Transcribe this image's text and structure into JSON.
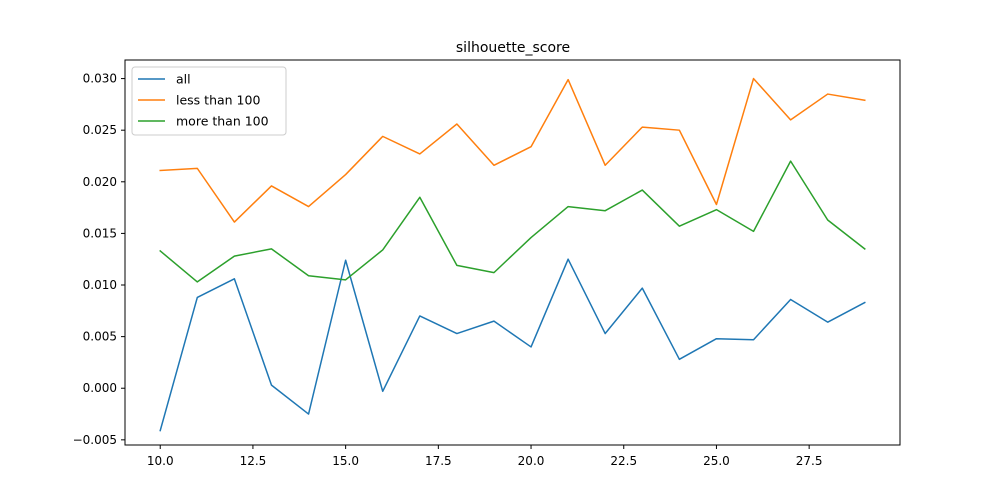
{
  "chart_data": {
    "type": "line",
    "title": "silhouette_score",
    "xlabel": "",
    "ylabel": "",
    "x": [
      10,
      11,
      12,
      13,
      14,
      15,
      16,
      17,
      18,
      19,
      20,
      21,
      22,
      23,
      24,
      25,
      26,
      27,
      28,
      29
    ],
    "xlim": [
      9.05,
      29.95
    ],
    "ylim": [
      -0.0055,
      0.0318
    ],
    "xticks": [
      10.0,
      12.5,
      15.0,
      17.5,
      20.0,
      22.5,
      25.0,
      27.5
    ],
    "xtick_labels": [
      "10.0",
      "12.5",
      "15.0",
      "17.5",
      "20.0",
      "22.5",
      "25.0",
      "27.5"
    ],
    "yticks": [
      -0.005,
      0.0,
      0.005,
      0.01,
      0.015,
      0.02,
      0.025,
      0.03
    ],
    "ytick_labels": [
      "−0.005",
      "0.000",
      "0.005",
      "0.010",
      "0.015",
      "0.020",
      "0.025",
      "0.030"
    ],
    "grid": false,
    "legend_position": "top-left",
    "series": [
      {
        "name": "all",
        "color": "#1f77b4",
        "values": [
          -0.0041,
          0.0088,
          0.0106,
          0.0003,
          -0.0025,
          0.0124,
          -0.0003,
          0.007,
          0.0053,
          0.0065,
          0.004,
          0.0125,
          0.0053,
          0.0097,
          0.0028,
          0.0048,
          0.0047,
          0.0086,
          0.0064,
          0.0083
        ]
      },
      {
        "name": "less than 100",
        "color": "#ff7f0e",
        "values": [
          0.0211,
          0.0213,
          0.0161,
          0.0196,
          0.0176,
          0.0207,
          0.0244,
          0.0227,
          0.0256,
          0.0216,
          0.0234,
          0.0299,
          0.0216,
          0.0253,
          0.025,
          0.0178,
          0.03,
          0.026,
          0.0285,
          0.0279
        ]
      },
      {
        "name": "more than 100",
        "color": "#2ca02c",
        "values": [
          0.0133,
          0.0103,
          0.0128,
          0.0135,
          0.0109,
          0.0105,
          0.0134,
          0.0185,
          0.0119,
          0.0112,
          0.0146,
          0.0176,
          0.0172,
          0.0192,
          0.0157,
          0.0173,
          0.0152,
          0.022,
          0.0163,
          0.0135
        ]
      }
    ]
  }
}
